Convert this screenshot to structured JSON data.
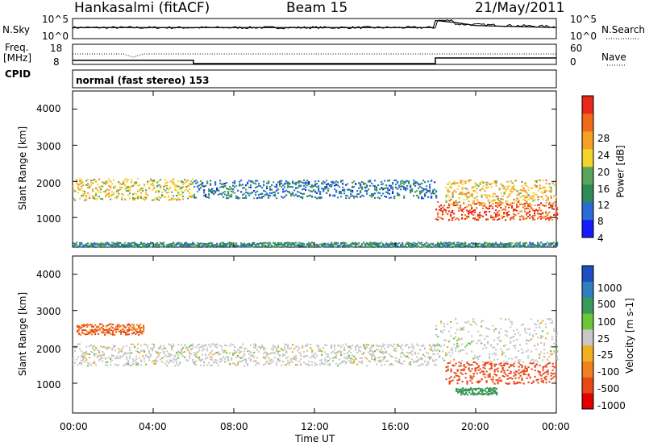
{
  "header": {
    "station": "Hankasalmi (fitACF)",
    "beam": "Beam 15",
    "date": "21/May/2011"
  },
  "noise_panel": {
    "left_label": "N.Sky",
    "right_label": "N.Search",
    "left_ticks": [
      "10^5",
      "10^0"
    ],
    "right_ticks": [
      "10^5",
      "10^0"
    ],
    "sky_series": {
      "name": "N.Sky",
      "x_hours": [
        0,
        2,
        4,
        6,
        8,
        10,
        12,
        14,
        16,
        17.9,
        18.0,
        19,
        20,
        22,
        24
      ],
      "level": [
        0.55,
        0.55,
        0.55,
        0.55,
        0.55,
        0.55,
        0.55,
        0.55,
        0.55,
        0.55,
        0.9,
        0.8,
        0.65,
        0.6,
        0.55
      ]
    }
  },
  "freq_panel": {
    "left_label_1": "Freq.",
    "left_label_2": "[MHz]",
    "right_label": "Nave",
    "left_ticks": [
      "18",
      "8"
    ],
    "right_ticks": [
      "60",
      "0"
    ]
  },
  "cpid": {
    "label": "CPID",
    "mode": "normal (fast stereo) 153"
  },
  "axes": {
    "ylabel": "Slant Range [km]",
    "y_ticks": [
      "4000",
      "3000",
      "2000",
      "1000"
    ],
    "x_ticks": [
      "00:00",
      "04:00",
      "08:00",
      "12:00",
      "16:00",
      "20:00",
      "00:00"
    ],
    "xlabel": "Time UT",
    "y_range": [
      180,
      4500
    ],
    "x_range_hours": [
      0,
      24
    ]
  },
  "colorbars": {
    "power": {
      "label": "Power [dB]",
      "ticks": [
        "28",
        "24",
        "20",
        "16",
        "12",
        "8",
        "4"
      ],
      "colors": [
        "#1a1aff",
        "#2c6ad8",
        "#2e8b57",
        "#5aa55a",
        "#f2d42a",
        "#f5a020",
        "#f06a1a",
        "#e8281a"
      ]
    },
    "velocity": {
      "label": "Velocity [m s-1]",
      "ticks": [
        "1000",
        "500",
        "100",
        "25",
        "-25",
        "-100",
        "-500",
        "-1000"
      ],
      "colors": [
        "#1e4fbf",
        "#2f7fc0",
        "#3a9a5a",
        "#6cc63a",
        "#c8c8c8",
        "#f0b020",
        "#f08020",
        "#e84818",
        "#e00000"
      ]
    }
  },
  "chart_data": [
    {
      "type": "heatmap",
      "title": "Power [dB]",
      "xlabel": "",
      "ylabel": "Slant Range [km]",
      "xlim_hours": [
        0,
        24
      ],
      "ylim_km": [
        180,
        4500
      ],
      "bands": [
        {
          "t_start": 0.0,
          "t_end": 6.0,
          "range_center_km": 1800,
          "range_halfwidth_km": 300,
          "power_db": 18
        },
        {
          "t_start": 6.0,
          "t_end": 18.0,
          "range_center_km": 1800,
          "range_halfwidth_km": 250,
          "power_db": 8
        },
        {
          "t_start": 18.0,
          "t_end": 24.0,
          "range_center_km": 1200,
          "range_halfwidth_km": 250,
          "power_db": 28
        },
        {
          "t_start": 18.5,
          "t_end": 24.0,
          "range_center_km": 1700,
          "range_halfwidth_km": 350,
          "power_db": 20
        },
        {
          "t_start": 0.0,
          "t_end": 24.0,
          "range_center_km": 250,
          "range_halfwidth_km": 80,
          "power_db": 10
        }
      ]
    },
    {
      "type": "heatmap",
      "title": "Velocity [m s-1]",
      "xlabel": "Time UT",
      "ylabel": "Slant Range [km]",
      "xlim_hours": [
        0,
        24
      ],
      "ylim_km": [
        180,
        4500
      ],
      "bands": [
        {
          "t_start": 0.0,
          "t_end": 18.0,
          "range_center_km": 1800,
          "range_halfwidth_km": 300,
          "velocity": 0
        },
        {
          "t_start": 0.2,
          "t_end": 3.5,
          "range_center_km": 2500,
          "range_halfwidth_km": 150,
          "velocity": -300
        },
        {
          "t_start": 18.5,
          "t_end": 24.0,
          "range_center_km": 1300,
          "range_halfwidth_km": 300,
          "velocity": -400
        },
        {
          "t_start": 19.0,
          "t_end": 21.0,
          "range_center_km": 800,
          "range_halfwidth_km": 100,
          "velocity": 150
        },
        {
          "t_start": 18.0,
          "t_end": 24.0,
          "range_center_km": 2200,
          "range_halfwidth_km": 600,
          "velocity": 0
        }
      ]
    }
  ]
}
